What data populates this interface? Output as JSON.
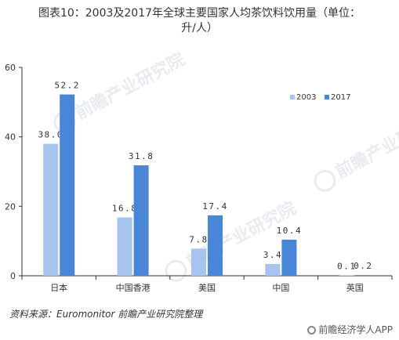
{
  "title_line1": "图表10：2003及2017年全球主要国家人均茶饮料饮用量（单位：",
  "title_line2": "升/人）",
  "watermark_text": "前瞻产业研究院",
  "source": "资料来源：Euromonitor  前瞻产业研究院整理",
  "brand": "前瞻经济学人APP",
  "colors": {
    "s2003": "#a6c4ee",
    "s2017": "#4a86d8",
    "axis": "#333333"
  },
  "chart_data": {
    "type": "bar",
    "title": "图表10：2003及2017年全球主要国家人均茶饮料饮用量（单位：升/人）",
    "categories": [
      "日本",
      "中国香港",
      "美国",
      "中国",
      "英国"
    ],
    "series": [
      {
        "name": "2003",
        "values": [
          38.0,
          16.8,
          7.8,
          3.4,
          0.1
        ],
        "labels": [
          "38.0",
          "16.8",
          "7.8",
          "3.4",
          "0.1"
        ]
      },
      {
        "name": "2017",
        "values": [
          52.2,
          31.8,
          17.4,
          10.4,
          0.2
        ],
        "labels": [
          "52.2",
          "31.8",
          "17.4",
          "10.4",
          "0.2"
        ]
      }
    ],
    "ylim": [
      0,
      60
    ],
    "yticks": [
      "0",
      "20",
      "40",
      "60"
    ],
    "xlabel": "",
    "ylabel": "",
    "legend_position": "top-right",
    "grid": false
  }
}
